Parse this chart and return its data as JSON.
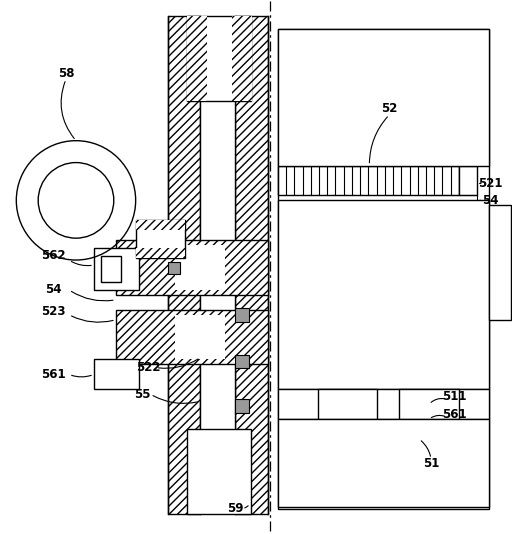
{
  "bg_color": "#ffffff",
  "fig_width": 5.13,
  "fig_height": 5.34,
  "dpi": 100
}
